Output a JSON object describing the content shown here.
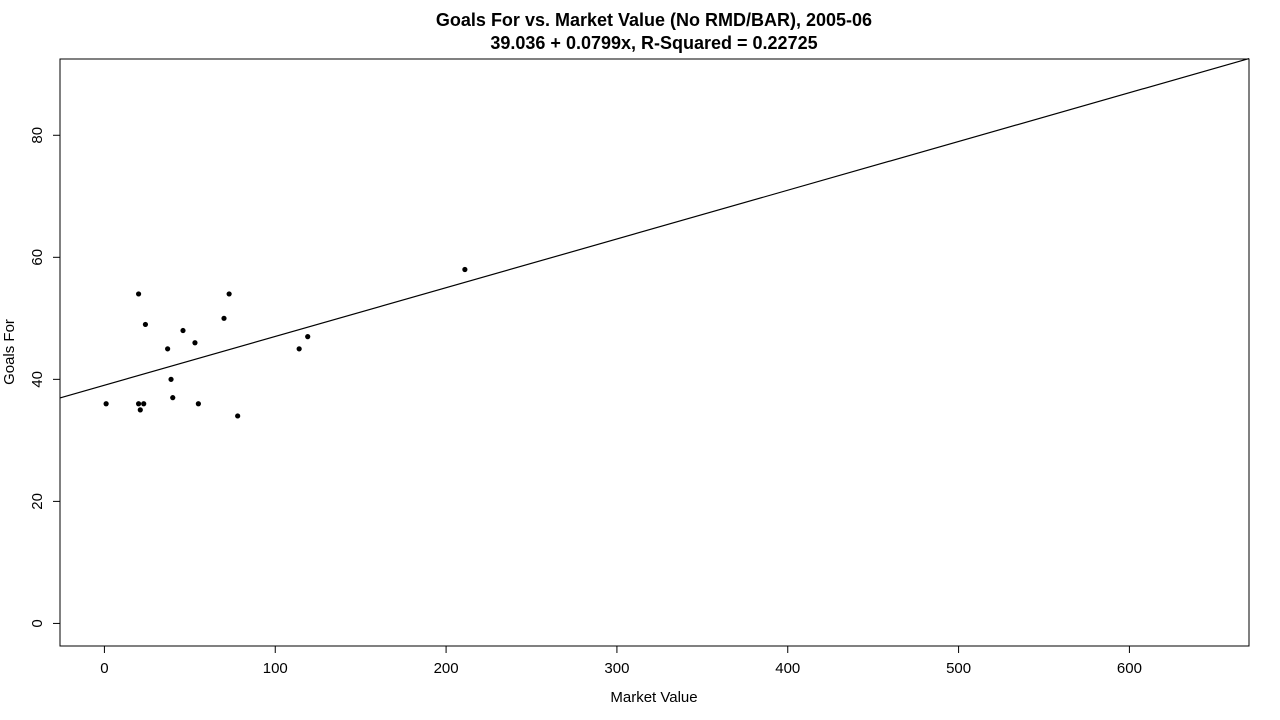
{
  "chart_data": {
    "type": "scatter",
    "title": "Goals For vs. Market Value (No RMD/BAR), 2005-06",
    "subtitle": "39.036 + 0.0799x, R-Squared = 0.22725",
    "xlabel": "Market Value",
    "ylabel": "Goals For",
    "xlim": [
      -26,
      670
    ],
    "ylim": [
      -3.7,
      92.5
    ],
    "xticks": [
      0,
      100,
      200,
      300,
      400,
      500,
      600
    ],
    "yticks": [
      0,
      20,
      40,
      60,
      80
    ],
    "grid": false,
    "regression": {
      "intercept": 39.036,
      "slope": 0.0799
    },
    "points": [
      {
        "x": 1,
        "y": 36
      },
      {
        "x": 20,
        "y": 54
      },
      {
        "x": 20,
        "y": 36
      },
      {
        "x": 21,
        "y": 35
      },
      {
        "x": 23,
        "y": 36
      },
      {
        "x": 24,
        "y": 49
      },
      {
        "x": 37,
        "y": 45
      },
      {
        "x": 39,
        "y": 40
      },
      {
        "x": 40,
        "y": 37
      },
      {
        "x": 46,
        "y": 48
      },
      {
        "x": 53,
        "y": 46
      },
      {
        "x": 55,
        "y": 36
      },
      {
        "x": 70,
        "y": 50
      },
      {
        "x": 73,
        "y": 54
      },
      {
        "x": 78,
        "y": 34
      },
      {
        "x": 114,
        "y": 45
      },
      {
        "x": 119,
        "y": 47
      },
      {
        "x": 211,
        "y": 58
      }
    ]
  }
}
